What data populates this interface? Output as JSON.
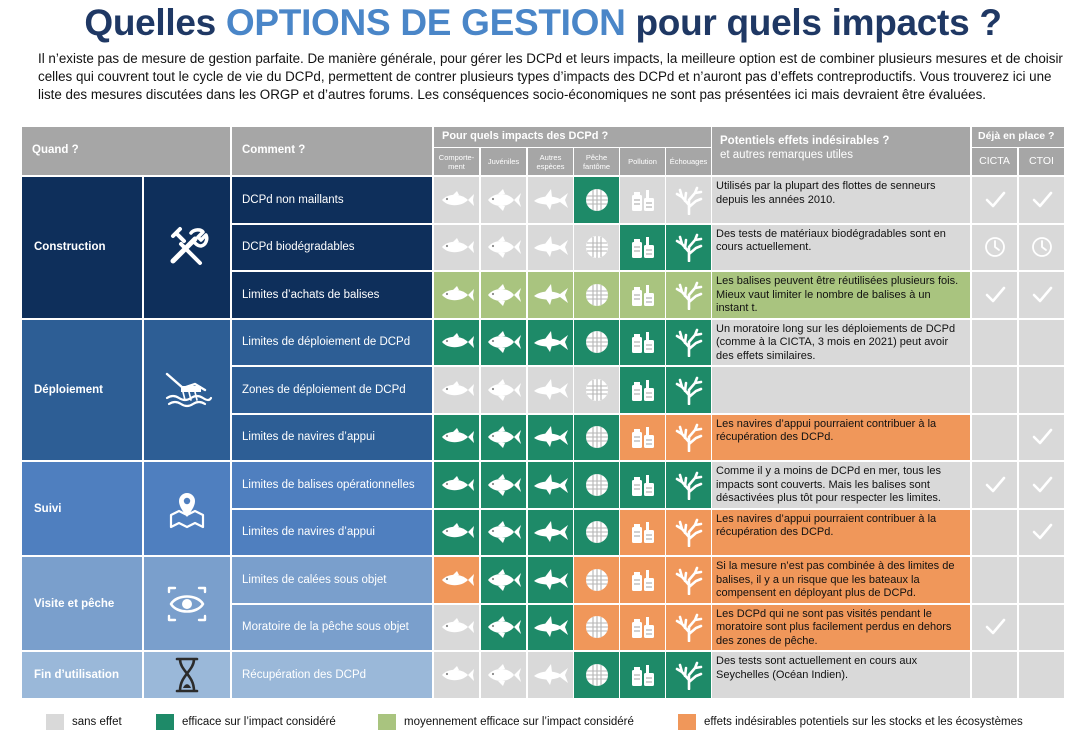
{
  "title": {
    "part1": "Quelles ",
    "part2": "OPTIONS DE GESTION",
    "part3": " pour quels impacts ?"
  },
  "intro": "Il n’existe pas de mesure de gestion parfaite. De manière générale, pour gérer les DCPd et leurs impacts, la meilleure option est de combiner plusieurs mesures et de choisir celles qui couvrent tout le cycle de vie du DCPd, permettent de contrer plusieurs types d’impacts des DCPd et n’auront pas d’effets contreproductifs. Vous trouverez ici une liste des mesures discutées dans les ORGP et d’autres forums. Les conséquences socio-économiques ne sont pas présentées ici mais devraient être évaluées.",
  "colors": {
    "none": "#d9d9d9",
    "effective": "#1e8a68",
    "moderate": "#a9c47f",
    "undesired": "#f0975a",
    "title": "#1f3864",
    "accent": "#4a86c8",
    "header": "#a6a6a6"
  },
  "headers": {
    "when": "Quand ?",
    "how": "Comment ?",
    "impacts": "Pour quels impacts des DCPd ?",
    "impact_cols": [
      "Comporte-ment",
      "Juvéniles",
      "Autres espèces",
      "Pêche fantôme",
      "Pollution",
      "Échouages"
    ],
    "effects_title": "Potentiels effets indésirables ?",
    "effects_sub": "et autres remarques utiles",
    "inplace": "Déjà en place ?",
    "inplace_cols": [
      "CICTA",
      "CTOI"
    ]
  },
  "groups": [
    {
      "label": "Construction",
      "icon": "tools-icon",
      "color": "#0e2f5b"
    },
    {
      "label": "Déploiement",
      "icon": "deploy-icon",
      "color": "#2d5e95"
    },
    {
      "label": "Suivi",
      "icon": "map-pin-icon",
      "color": "#4f7fbf"
    },
    {
      "label": "Visite et pêche",
      "icon": "eye-icon",
      "color": "#7a9fcc"
    },
    {
      "label": "Fin d’utilisation",
      "icon": "hourglass-icon",
      "color": "#9ab8d9"
    }
  ],
  "rows": [
    {
      "how": "DCPd non maillants",
      "impacts": [
        "n",
        "n",
        "n",
        "e",
        "n",
        "n"
      ],
      "note": "Utilisés par la plupart des flottes de senneurs depuis les années 2010.",
      "note_type": "n",
      "cicta": "check",
      "ctoi": "check"
    },
    {
      "how": "DCPd biodégradables",
      "impacts": [
        "n",
        "n",
        "n",
        "n",
        "e",
        "e"
      ],
      "note": "Des tests de matériaux biodégradables sont en cours actuellement.",
      "note_type": "n",
      "cicta": "clock",
      "ctoi": "clock"
    },
    {
      "how": "Limites d’achats de balises",
      "impacts": [
        "m",
        "m",
        "m",
        "m",
        "m",
        "m"
      ],
      "note": "Les balises peuvent être réutilisées plusieurs fois. Mieux vaut limiter le nombre de balises à un instant t.",
      "note_type": "m",
      "cicta": "check",
      "ctoi": "check"
    },
    {
      "how": "Limites de déploiement de DCPd",
      "impacts": [
        "e",
        "e",
        "e",
        "e",
        "e",
        "e"
      ],
      "note": "Un moratoire long sur les déploiements de DCPd (comme à la CICTA, 3 mois en 2021) peut avoir des effets similaires.",
      "note_type": "n",
      "cicta": "",
      "ctoi": ""
    },
    {
      "how": "Zones de déploiement de DCPd",
      "impacts": [
        "n",
        "n",
        "n",
        "n",
        "e",
        "e"
      ],
      "note": "",
      "note_type": "n",
      "cicta": "",
      "ctoi": ""
    },
    {
      "how": "Limites de navires d’appui",
      "impacts": [
        "e",
        "e",
        "e",
        "e",
        "u",
        "u"
      ],
      "note": "Les navires d’appui pourraient contribuer à la récupération des DCPd.",
      "note_type": "u",
      "cicta": "",
      "ctoi": "check"
    },
    {
      "how": "Limites de balises opérationnelles",
      "impacts": [
        "e",
        "e",
        "e",
        "e",
        "e",
        "e"
      ],
      "note": "Comme il y a moins de DCPd en mer, tous les impacts sont couverts. Mais les balises sont désactivées plus tôt pour respecter les limites.",
      "note_type": "n",
      "cicta": "check",
      "ctoi": "check"
    },
    {
      "how": "Limites de navires d’appui",
      "impacts": [
        "e",
        "e",
        "e",
        "e",
        "u",
        "u"
      ],
      "note": "Les navires d’appui pourraient contribuer à la récupération des DCPd.",
      "note_type": "u",
      "cicta": "",
      "ctoi": "check"
    },
    {
      "how": "Limites de calées sous objet",
      "impacts": [
        "u",
        "e",
        "e",
        "u",
        "u",
        "u"
      ],
      "note": "Si la mesure n’est pas combinée à des limites de balises, il y a un risque que les bateaux la compensent en déployant plus de DCPd.",
      "note_type": "u",
      "cicta": "",
      "ctoi": ""
    },
    {
      "how": "Moratoire de la pêche sous objet",
      "impacts": [
        "n",
        "e",
        "e",
        "u",
        "u",
        "u"
      ],
      "note": "Les DCPd qui ne sont pas visités pendant le moratoire sont plus facilement perdus en dehors des zones de pêche.",
      "note_type": "u",
      "cicta": "check",
      "ctoi": ""
    },
    {
      "how": "Récupération des DCPd",
      "impacts": [
        "n",
        "n",
        "n",
        "e",
        "e",
        "e"
      ],
      "note": "Des tests sont actuellement en cours aux Seychelles (Océan Indien).",
      "note_type": "n",
      "cicta": "",
      "ctoi": ""
    }
  ],
  "legend": [
    "sans effet",
    "efficace sur l’impact considéré",
    "moyennement efficace sur l’impact considéré",
    "effets indésirables potentiels sur les stocks et les écosystèmes"
  ]
}
